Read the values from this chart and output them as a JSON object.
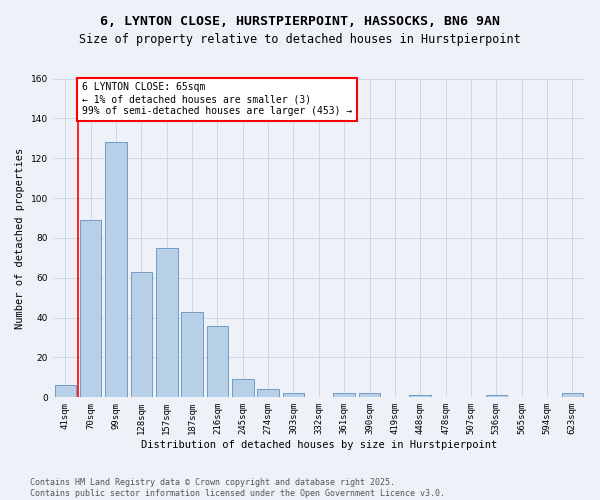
{
  "title_line1": "6, LYNTON CLOSE, HURSTPIERPOINT, HASSOCKS, BN6 9AN",
  "title_line2": "Size of property relative to detached houses in Hurstpierpoint",
  "xlabel": "Distribution of detached houses by size in Hurstpierpoint",
  "ylabel": "Number of detached properties",
  "categories": [
    "41sqm",
    "70sqm",
    "99sqm",
    "128sqm",
    "157sqm",
    "187sqm",
    "216sqm",
    "245sqm",
    "274sqm",
    "303sqm",
    "332sqm",
    "361sqm",
    "390sqm",
    "419sqm",
    "448sqm",
    "478sqm",
    "507sqm",
    "536sqm",
    "565sqm",
    "594sqm",
    "623sqm"
  ],
  "values": [
    6,
    89,
    128,
    63,
    75,
    43,
    36,
    9,
    4,
    2,
    0,
    2,
    2,
    0,
    1,
    0,
    0,
    1,
    0,
    0,
    2
  ],
  "bar_color": "#b8cfe8",
  "bar_edge_color": "#6090c0",
  "annotation_box_text": "6 LYNTON CLOSE: 65sqm\n← 1% of detached houses are smaller (3)\n99% of semi-detached houses are larger (453) →",
  "annotation_box_color": "white",
  "annotation_box_edge_color": "red",
  "vline_color": "red",
  "ylim": [
    0,
    160
  ],
  "yticks": [
    0,
    20,
    40,
    60,
    80,
    100,
    120,
    140,
    160
  ],
  "grid_color": "#c8d4e4",
  "background_color": "#eef2f8",
  "footnote": "Contains HM Land Registry data © Crown copyright and database right 2025.\nContains public sector information licensed under the Open Government Licence v3.0.",
  "title_fontsize": 9.5,
  "subtitle_fontsize": 8.5,
  "axis_label_fontsize": 7.5,
  "tick_fontsize": 6.5,
  "annotation_fontsize": 7,
  "footnote_fontsize": 6
}
